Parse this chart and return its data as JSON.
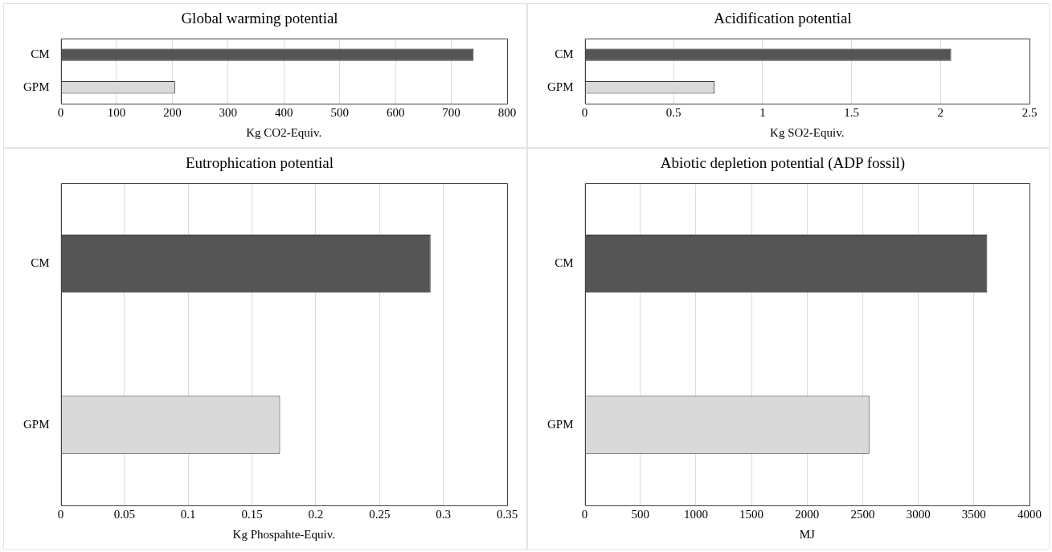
{
  "chart_data": [
    {
      "type": "bar",
      "orientation": "horizontal",
      "title": "Global warming potential",
      "xlabel": "Kg CO2-Equiv.",
      "categories": [
        "CM",
        "GPM"
      ],
      "values": [
        740,
        205
      ],
      "colors": [
        "#555555",
        "#d9d9d9"
      ],
      "xlim": [
        0,
        800
      ],
      "xticks": [
        0,
        100,
        200,
        300,
        400,
        500,
        600,
        700,
        800
      ],
      "grid": "x"
    },
    {
      "type": "bar",
      "orientation": "horizontal",
      "title": "Acidification potential",
      "xlabel": "Kg SO2-Equiv.",
      "categories": [
        "CM",
        "GPM"
      ],
      "values": [
        2.06,
        0.73
      ],
      "colors": [
        "#555555",
        "#d9d9d9"
      ],
      "xlim": [
        0,
        2.5
      ],
      "xticks": [
        0,
        0.5,
        1,
        1.5,
        2,
        2.5
      ],
      "grid": "x"
    },
    {
      "type": "bar",
      "orientation": "horizontal",
      "title": "Eutrophication potential",
      "xlabel": "Kg Phospahte-Equiv.",
      "categories": [
        "CM",
        "GPM"
      ],
      "values": [
        0.29,
        0.172
      ],
      "colors": [
        "#555555",
        "#d9d9d9"
      ],
      "xlim": [
        0,
        0.35
      ],
      "xticks": [
        0,
        0.05,
        0.1,
        0.15,
        0.2,
        0.25,
        0.3,
        0.35
      ],
      "grid": "x"
    },
    {
      "type": "bar",
      "orientation": "horizontal",
      "title": "Abiotic depletion potential (ADP fossil)",
      "xlabel": "MJ",
      "categories": [
        "CM",
        "GPM"
      ],
      "values": [
        3620,
        2560
      ],
      "colors": [
        "#555555",
        "#d9d9d9"
      ],
      "xlim": [
        0,
        4000
      ],
      "xticks": [
        0,
        500,
        1000,
        1500,
        2000,
        2500,
        3000,
        3500,
        4000
      ],
      "grid": "x"
    }
  ]
}
